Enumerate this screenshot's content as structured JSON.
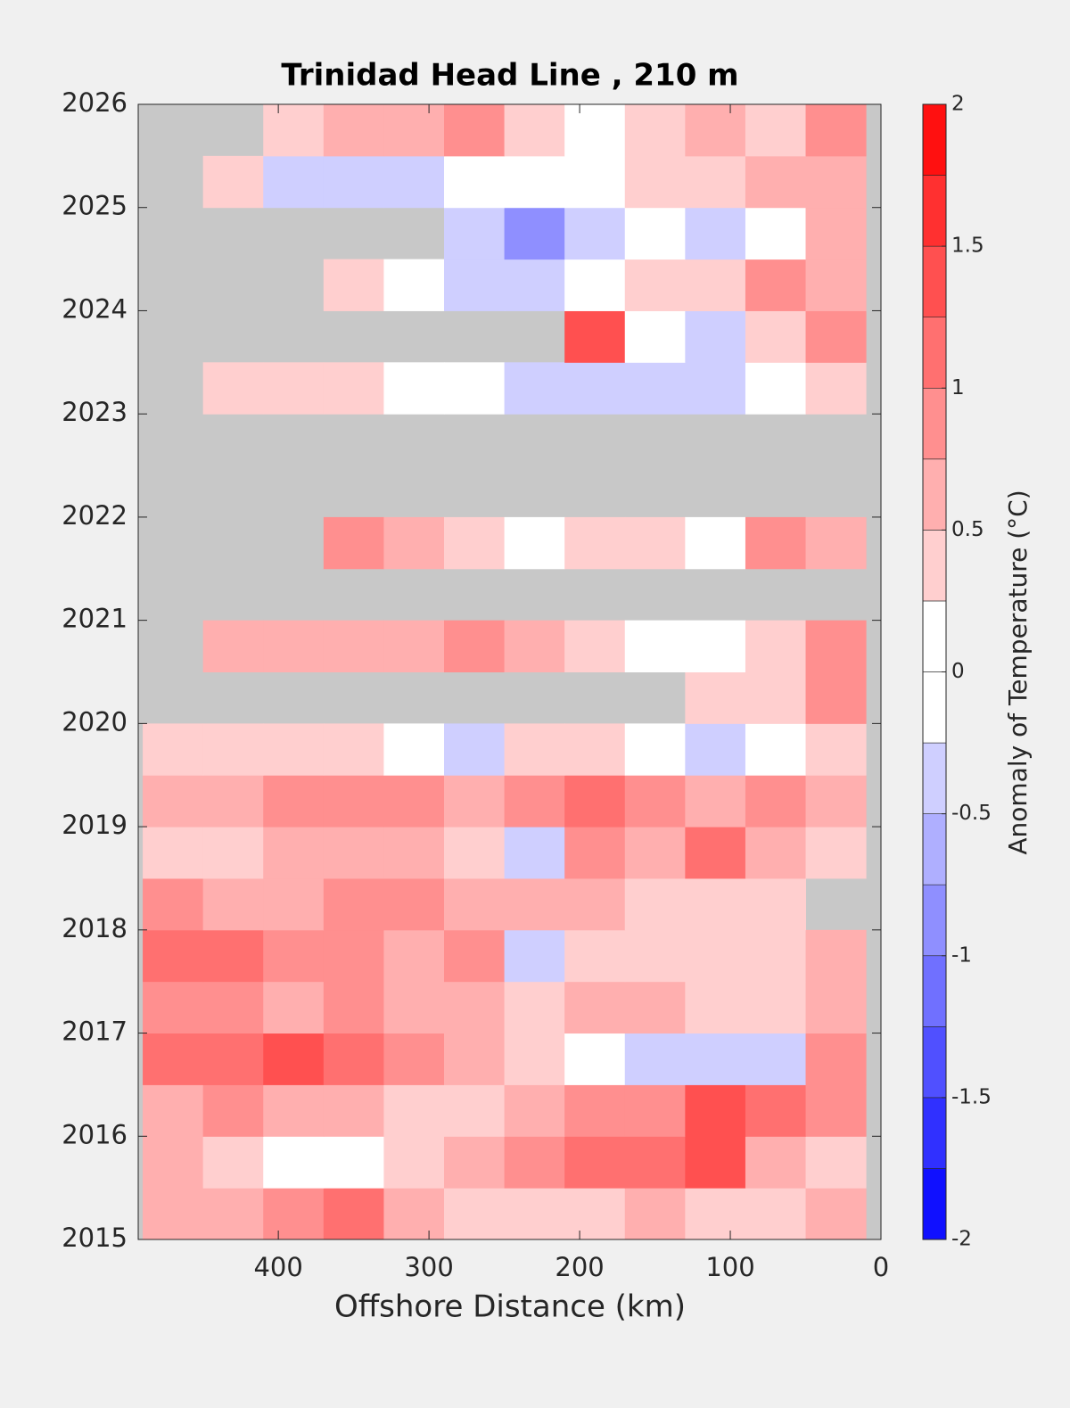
{
  "chart_data": {
    "type": "heatmap",
    "title": "Trinidad Head Line , 210 m",
    "x_label": "Offshore Distance (km)",
    "colorbar_label": "Anomaly of Temperature (°C)",
    "xlim": [
      493,
      0
    ],
    "xticks": [
      400,
      300,
      200,
      100,
      0
    ],
    "ylim": [
      2015,
      2026
    ],
    "yticks": [
      2015,
      2016,
      2017,
      2018,
      2019,
      2020,
      2021,
      2022,
      2023,
      2024,
      2025,
      2026
    ],
    "clim": [
      -2,
      2
    ],
    "cticks": [
      {
        "value": -2,
        "label": "-2"
      },
      {
        "value": -1.5,
        "label": "-1.5"
      },
      {
        "value": -1,
        "label": "-1"
      },
      {
        "value": -0.5,
        "label": "-0.5"
      },
      0,
      0.5,
      1,
      1.5,
      2
    ],
    "levels": [
      -2,
      -1.75,
      -1.5,
      -1.25,
      -1,
      -0.75,
      -0.5,
      -0.25,
      0,
      0.25,
      0.5,
      0.75,
      1,
      1.25,
      1.5,
      1.75,
      2
    ],
    "negative_color": "#0000ff",
    "positive_color": "#ff0000",
    "missing_color": "#c8c8c8",
    "x": [
      470,
      430,
      390,
      350,
      310,
      270,
      230,
      190,
      150,
      110,
      70,
      30
    ],
    "y": [
      2015.25,
      2015.75,
      2016.25,
      2016.75,
      2017.25,
      2017.75,
      2018.25,
      2018.75,
      2019.25,
      2019.75,
      2020.25,
      2020.75,
      2021.25,
      2021.75,
      2022.25,
      2022.75,
      2023.25,
      2023.75,
      2024.25,
      2024.75,
      2025.25,
      2025.75
    ],
    "z": [
      [
        0.5,
        0.5,
        0.8,
        1.0,
        0.5,
        0.3,
        0.3,
        0.3,
        0.5,
        0.3,
        0.3,
        0.5
      ],
      [
        0.5,
        0.3,
        0,
        0,
        0.3,
        0.5,
        0.8,
        1.0,
        1.0,
        1.3,
        0.5,
        0.3
      ],
      [
        0.5,
        0.8,
        0.5,
        0.5,
        0.3,
        0.3,
        0.5,
        0.8,
        0.8,
        1.3,
        1.0,
        0.8
      ],
      [
        1.0,
        1.0,
        1.3,
        1.0,
        0.8,
        0.5,
        0.3,
        0,
        -0.3,
        -0.3,
        -0.3,
        0.8
      ],
      [
        0.8,
        0.8,
        0.5,
        0.8,
        0.5,
        0.5,
        0.3,
        0.5,
        0.5,
        0.3,
        0.3,
        0.5
      ],
      [
        1.0,
        1.0,
        0.8,
        0.8,
        0.5,
        0.8,
        -0.5,
        0.3,
        0.3,
        0.3,
        0.3,
        0.5
      ],
      [
        0.8,
        0.5,
        0.5,
        0.8,
        0.8,
        0.5,
        0.5,
        0.5,
        0.3,
        0.3,
        0.3,
        null
      ],
      [
        0.3,
        0.3,
        0.5,
        0.5,
        0.5,
        0.3,
        -0.3,
        0.8,
        0.5,
        1.0,
        0.5,
        0.3
      ],
      [
        0.5,
        0.5,
        0.8,
        0.8,
        0.8,
        0.5,
        0.8,
        1.0,
        0.8,
        0.5,
        0.8,
        0.5
      ],
      [
        0.3,
        0.3,
        0.3,
        0.3,
        0,
        -0.3,
        0.3,
        0.3,
        0,
        -0.3,
        0,
        0.3
      ],
      [
        null,
        null,
        null,
        null,
        null,
        null,
        null,
        null,
        null,
        0.3,
        0.3,
        0.8
      ],
      [
        null,
        0.5,
        0.5,
        0.5,
        0.5,
        0.8,
        0.5,
        0.3,
        0,
        0,
        0.3,
        0.8
      ],
      [
        null,
        null,
        null,
        null,
        null,
        null,
        null,
        null,
        null,
        null,
        null,
        null
      ],
      [
        null,
        null,
        null,
        0.8,
        0.5,
        0.3,
        0,
        0.3,
        0.3,
        0,
        0.8,
        0.5
      ],
      [
        null,
        null,
        null,
        null,
        null,
        null,
        null,
        null,
        null,
        null,
        null,
        null
      ],
      [
        null,
        null,
        null,
        null,
        null,
        null,
        null,
        null,
        null,
        null,
        null,
        null
      ],
      [
        null,
        0.3,
        0.3,
        0.3,
        0,
        0,
        -0.3,
        -0.3,
        -0.5,
        -0.3,
        0,
        0.3
      ],
      [
        null,
        null,
        null,
        null,
        null,
        null,
        null,
        1.3,
        0,
        -0.3,
        0.3,
        0.8
      ],
      [
        null,
        null,
        null,
        0.3,
        0,
        -0.3,
        -0.3,
        0,
        0.3,
        0.3,
        0.8,
        0.5
      ],
      [
        null,
        null,
        null,
        null,
        null,
        -0.3,
        -1.0,
        -0.3,
        0,
        -0.3,
        0,
        0.5
      ],
      [
        null,
        0.3,
        -0.3,
        -0.3,
        -0.5,
        0,
        0,
        0,
        0.3,
        0.3,
        0.5,
        0.5
      ],
      [
        null,
        null,
        0.3,
        0.5,
        0.5,
        0.8,
        0.3,
        0,
        0.3,
        0.5,
        0.3,
        0.8
      ]
    ]
  }
}
